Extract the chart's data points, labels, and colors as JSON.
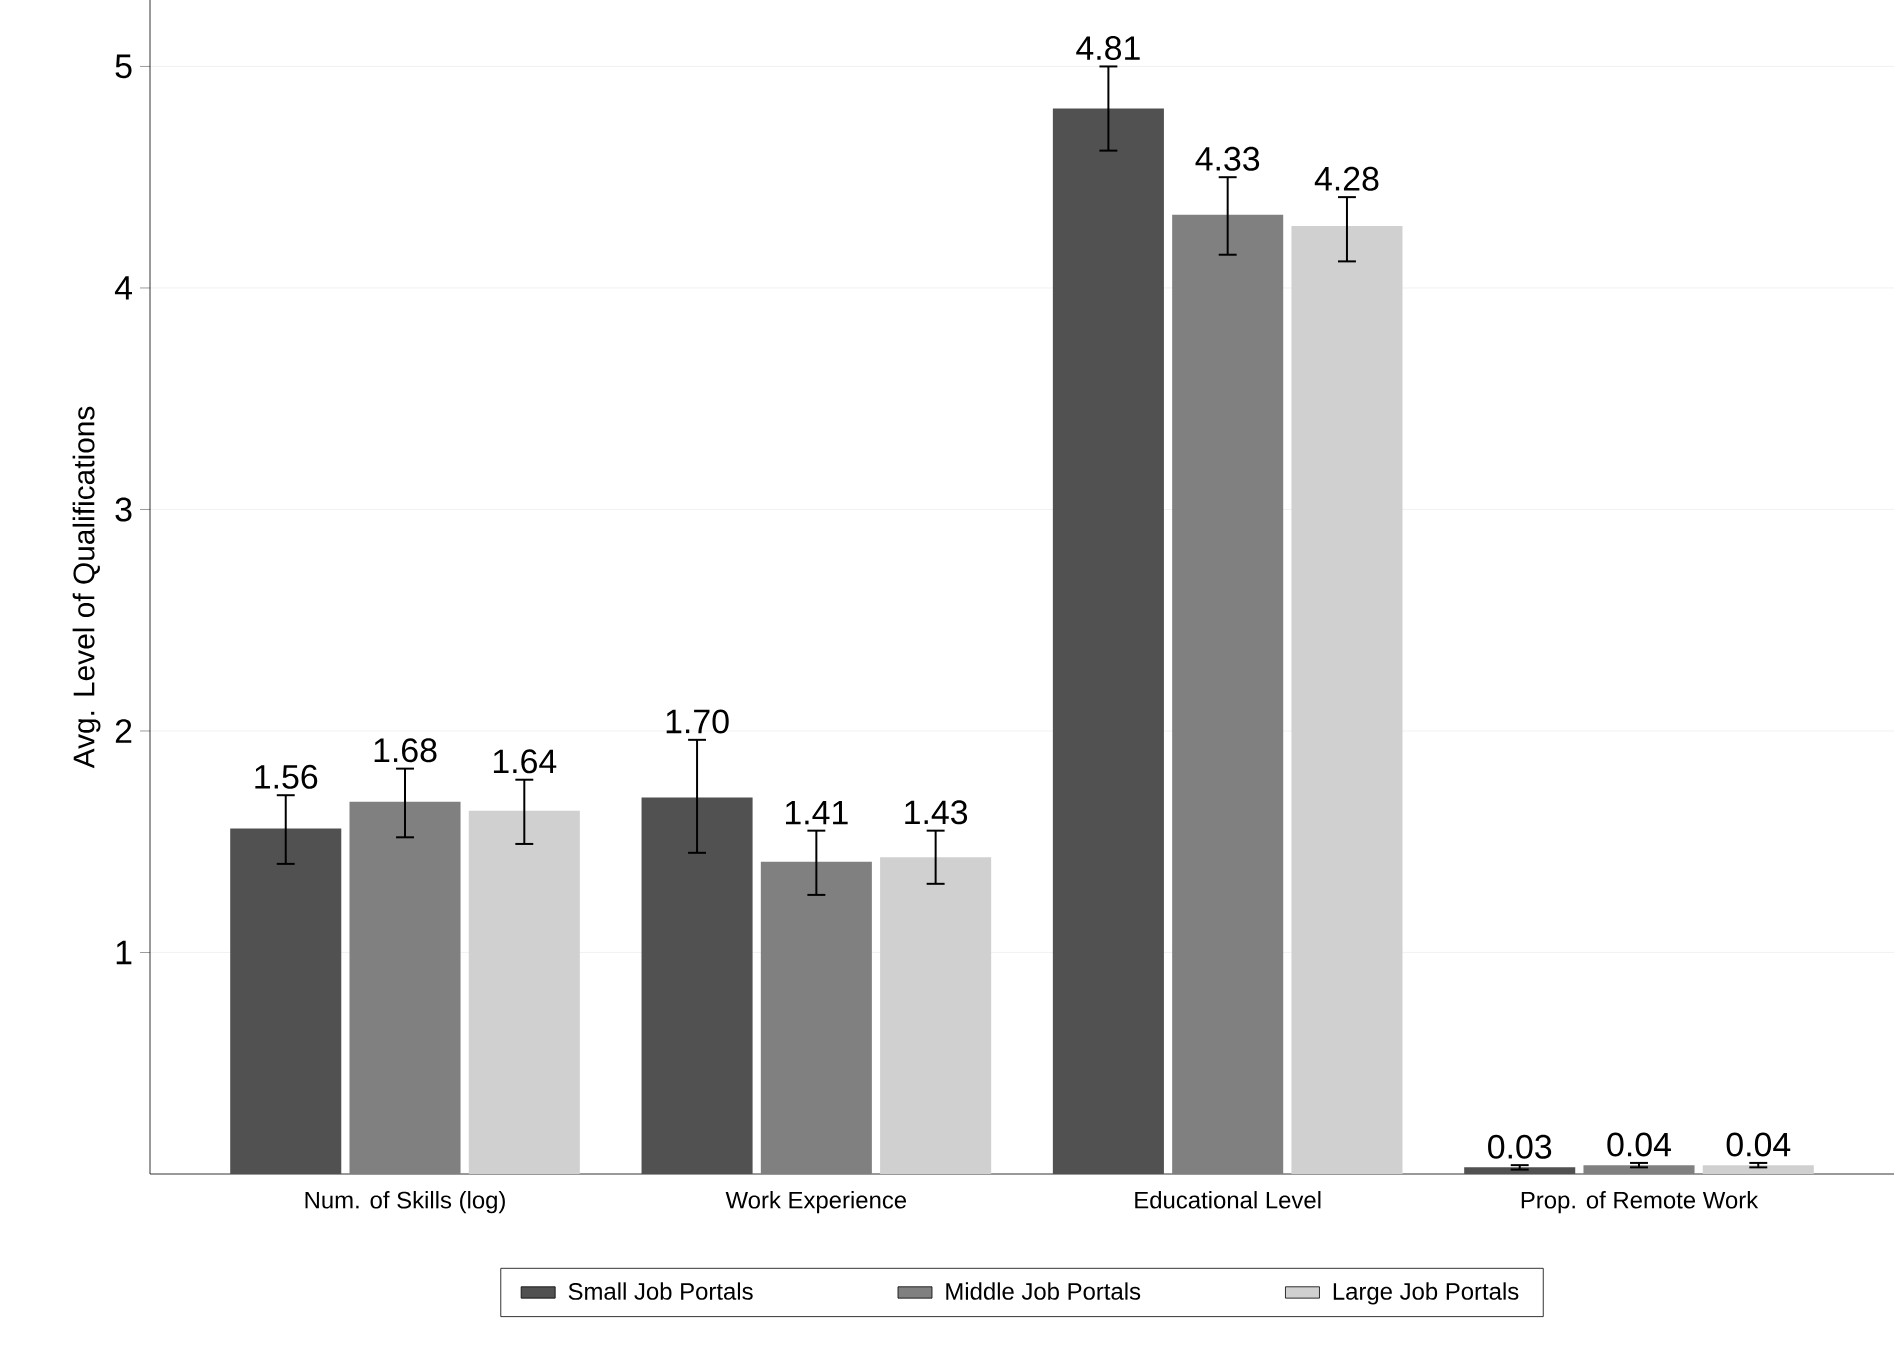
{
  "chart_data": {
    "type": "bar",
    "ylabel": "Avg. Level of Qualifications",
    "categories": [
      "Num. of Skills (log)",
      "Work Experience",
      "Educational Level",
      "Prop. of Remote Work"
    ],
    "series": [
      {
        "name": "Small Job Portals",
        "color": "#515151",
        "values": [
          1.56,
          1.7,
          4.81,
          0.03
        ],
        "value_labels": [
          "1.56",
          "1.70",
          "4.81",
          "0.03"
        ],
        "errors": [
          [
            1.4,
            1.71
          ],
          [
            1.45,
            1.96
          ],
          [
            4.62,
            5.0
          ],
          [
            0.02,
            0.04
          ]
        ]
      },
      {
        "name": "Middle Job Portals",
        "color": "#808080",
        "values": [
          1.68,
          1.41,
          4.33,
          0.04
        ],
        "value_labels": [
          "1.68",
          "1.41",
          "4.33",
          "0.04"
        ],
        "errors": [
          [
            1.52,
            1.83
          ],
          [
            1.26,
            1.55
          ],
          [
            4.15,
            4.5
          ],
          [
            0.03,
            0.05
          ]
        ]
      },
      {
        "name": "Large Job Portals",
        "color": "#d0d0d0",
        "values": [
          1.64,
          1.43,
          4.28,
          0.04
        ],
        "value_labels": [
          "1.64",
          "1.43",
          "4.28",
          "0.04"
        ],
        "errors": [
          [
            1.49,
            1.78
          ],
          [
            1.31,
            1.55
          ],
          [
            4.12,
            4.41
          ],
          [
            0.03,
            0.05
          ]
        ]
      }
    ],
    "ylim": [
      0,
      5.3
    ],
    "yticks": [
      1,
      2,
      3,
      4,
      5
    ],
    "grid": "y",
    "legend": "bottom"
  }
}
